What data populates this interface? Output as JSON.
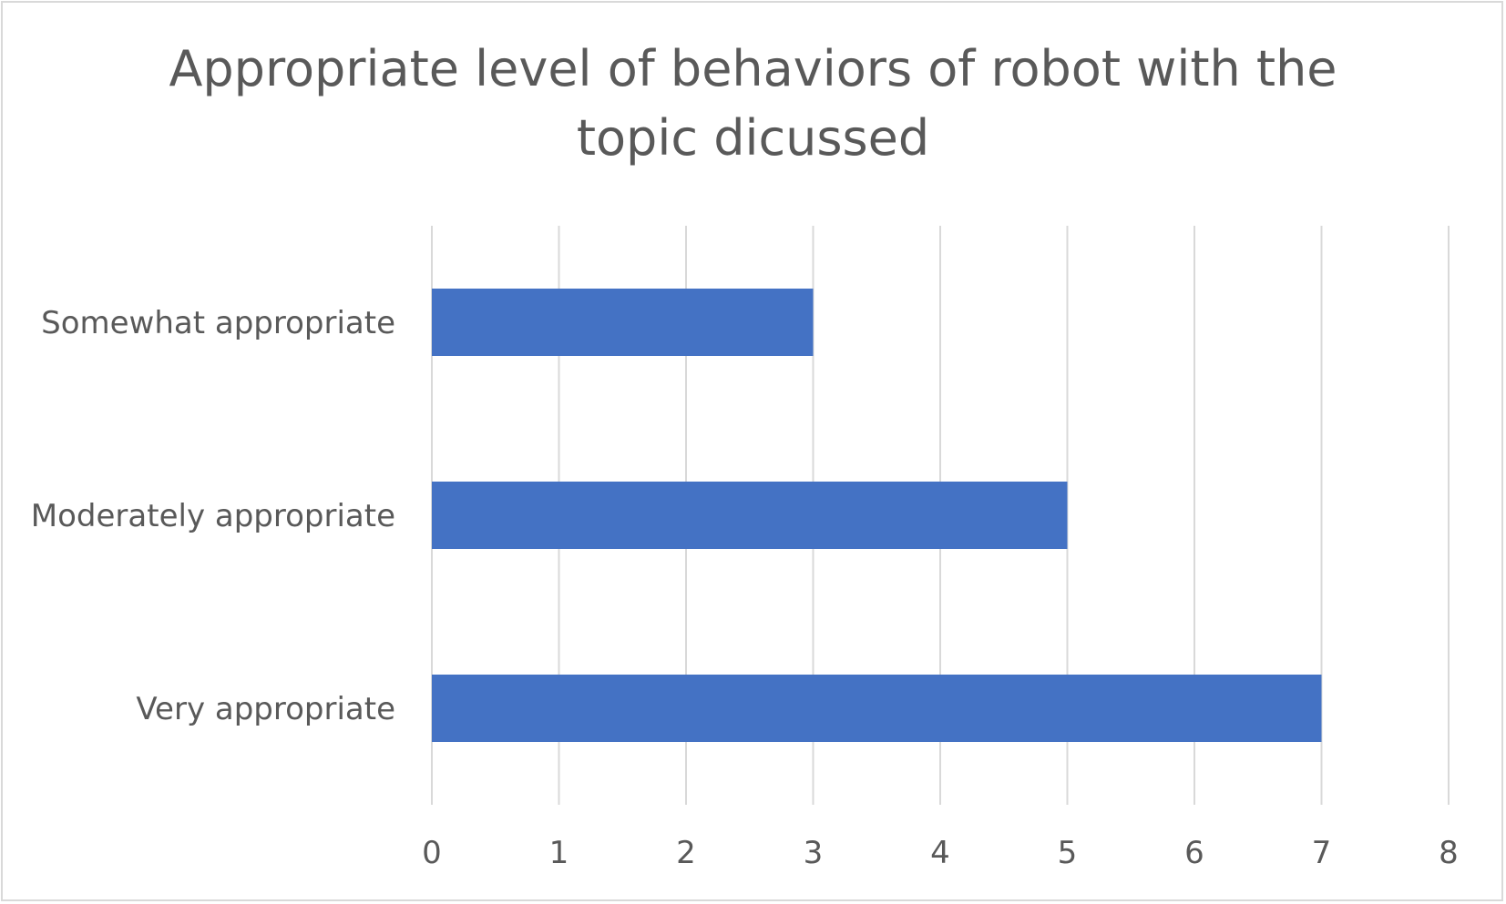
{
  "chart_data": {
    "type": "bar",
    "orientation": "horizontal",
    "title_lines": [
      "Appropriate level of behaviors of robot with the",
      "topic dicussed"
    ],
    "categories": [
      "Somewhat appropriate",
      "Moderately appropriate",
      "Very appropriate"
    ],
    "values": [
      3,
      5,
      7
    ],
    "xlim": [
      0,
      8
    ],
    "xticks": [
      0,
      1,
      2,
      3,
      4,
      5,
      6,
      7,
      8
    ],
    "grid": true,
    "legend": "none",
    "bar_color": "#4472c4",
    "grid_color": "#d9d9d9",
    "text_color": "#595959"
  }
}
